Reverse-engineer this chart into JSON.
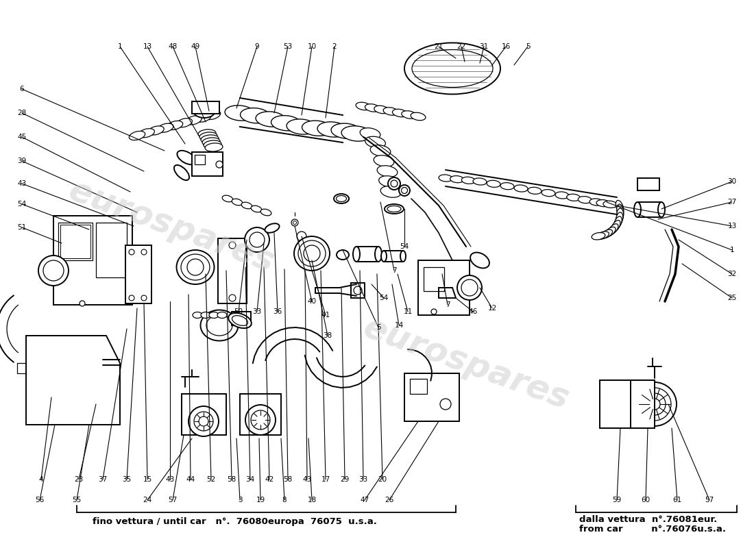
{
  "background_color": "#ffffff",
  "watermark_text": "eurospares",
  "bottom_text_left": "fino vettura / until car   n°.  76080europa  76075  u.s.a.",
  "bottom_text_right_line1": "dalla vettura  n°.76081eur.",
  "bottom_text_right_line2": "from car         n°.76076u.s.a.",
  "fig_width": 11.0,
  "fig_height": 8.0,
  "dpi": 100
}
